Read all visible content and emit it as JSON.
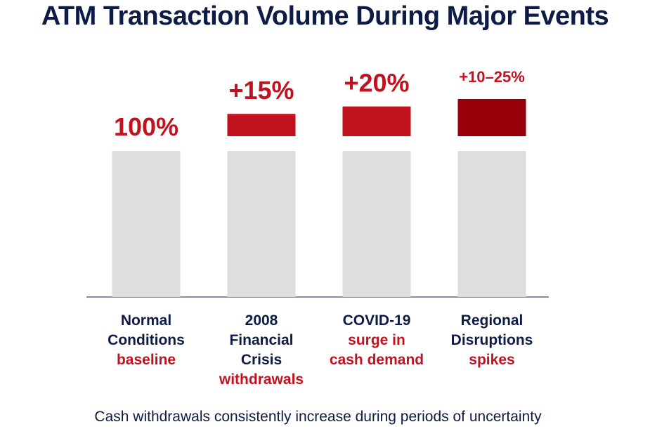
{
  "chart_data": {
    "type": "bar",
    "title": "ATM Transaction Volume During Major Events",
    "subtitle": "Cash withdrawals consistently increase during periods of uncertainty",
    "categories": [
      {
        "lines": [
          "Normal",
          "Conditions"
        ],
        "note": [
          "baseline"
        ]
      },
      {
        "lines": [
          "2008",
          "Financial",
          "Crisis"
        ],
        "note": [
          "withdrawals"
        ]
      },
      {
        "lines": [
          "COVID-19"
        ],
        "note": [
          "surge in",
          "cash demand"
        ]
      },
      {
        "lines": [
          "Regional",
          "Disruptions"
        ],
        "note": [
          "spikes"
        ]
      }
    ],
    "baseline_values": [
      100,
      100,
      100,
      100
    ],
    "increase_values": [
      0,
      15,
      20,
      25
    ],
    "increase_range_last": [
      10,
      25
    ],
    "data_labels": [
      "100%",
      "+15%",
      "+20%",
      "+10–25%"
    ],
    "colors": {
      "baseline": "#DEDEDE",
      "increase": "#C1121F",
      "increase_dark": "#970009",
      "text": "#0D1B45",
      "axis": "#0D1B45"
    },
    "grid": false,
    "legend": "none"
  }
}
